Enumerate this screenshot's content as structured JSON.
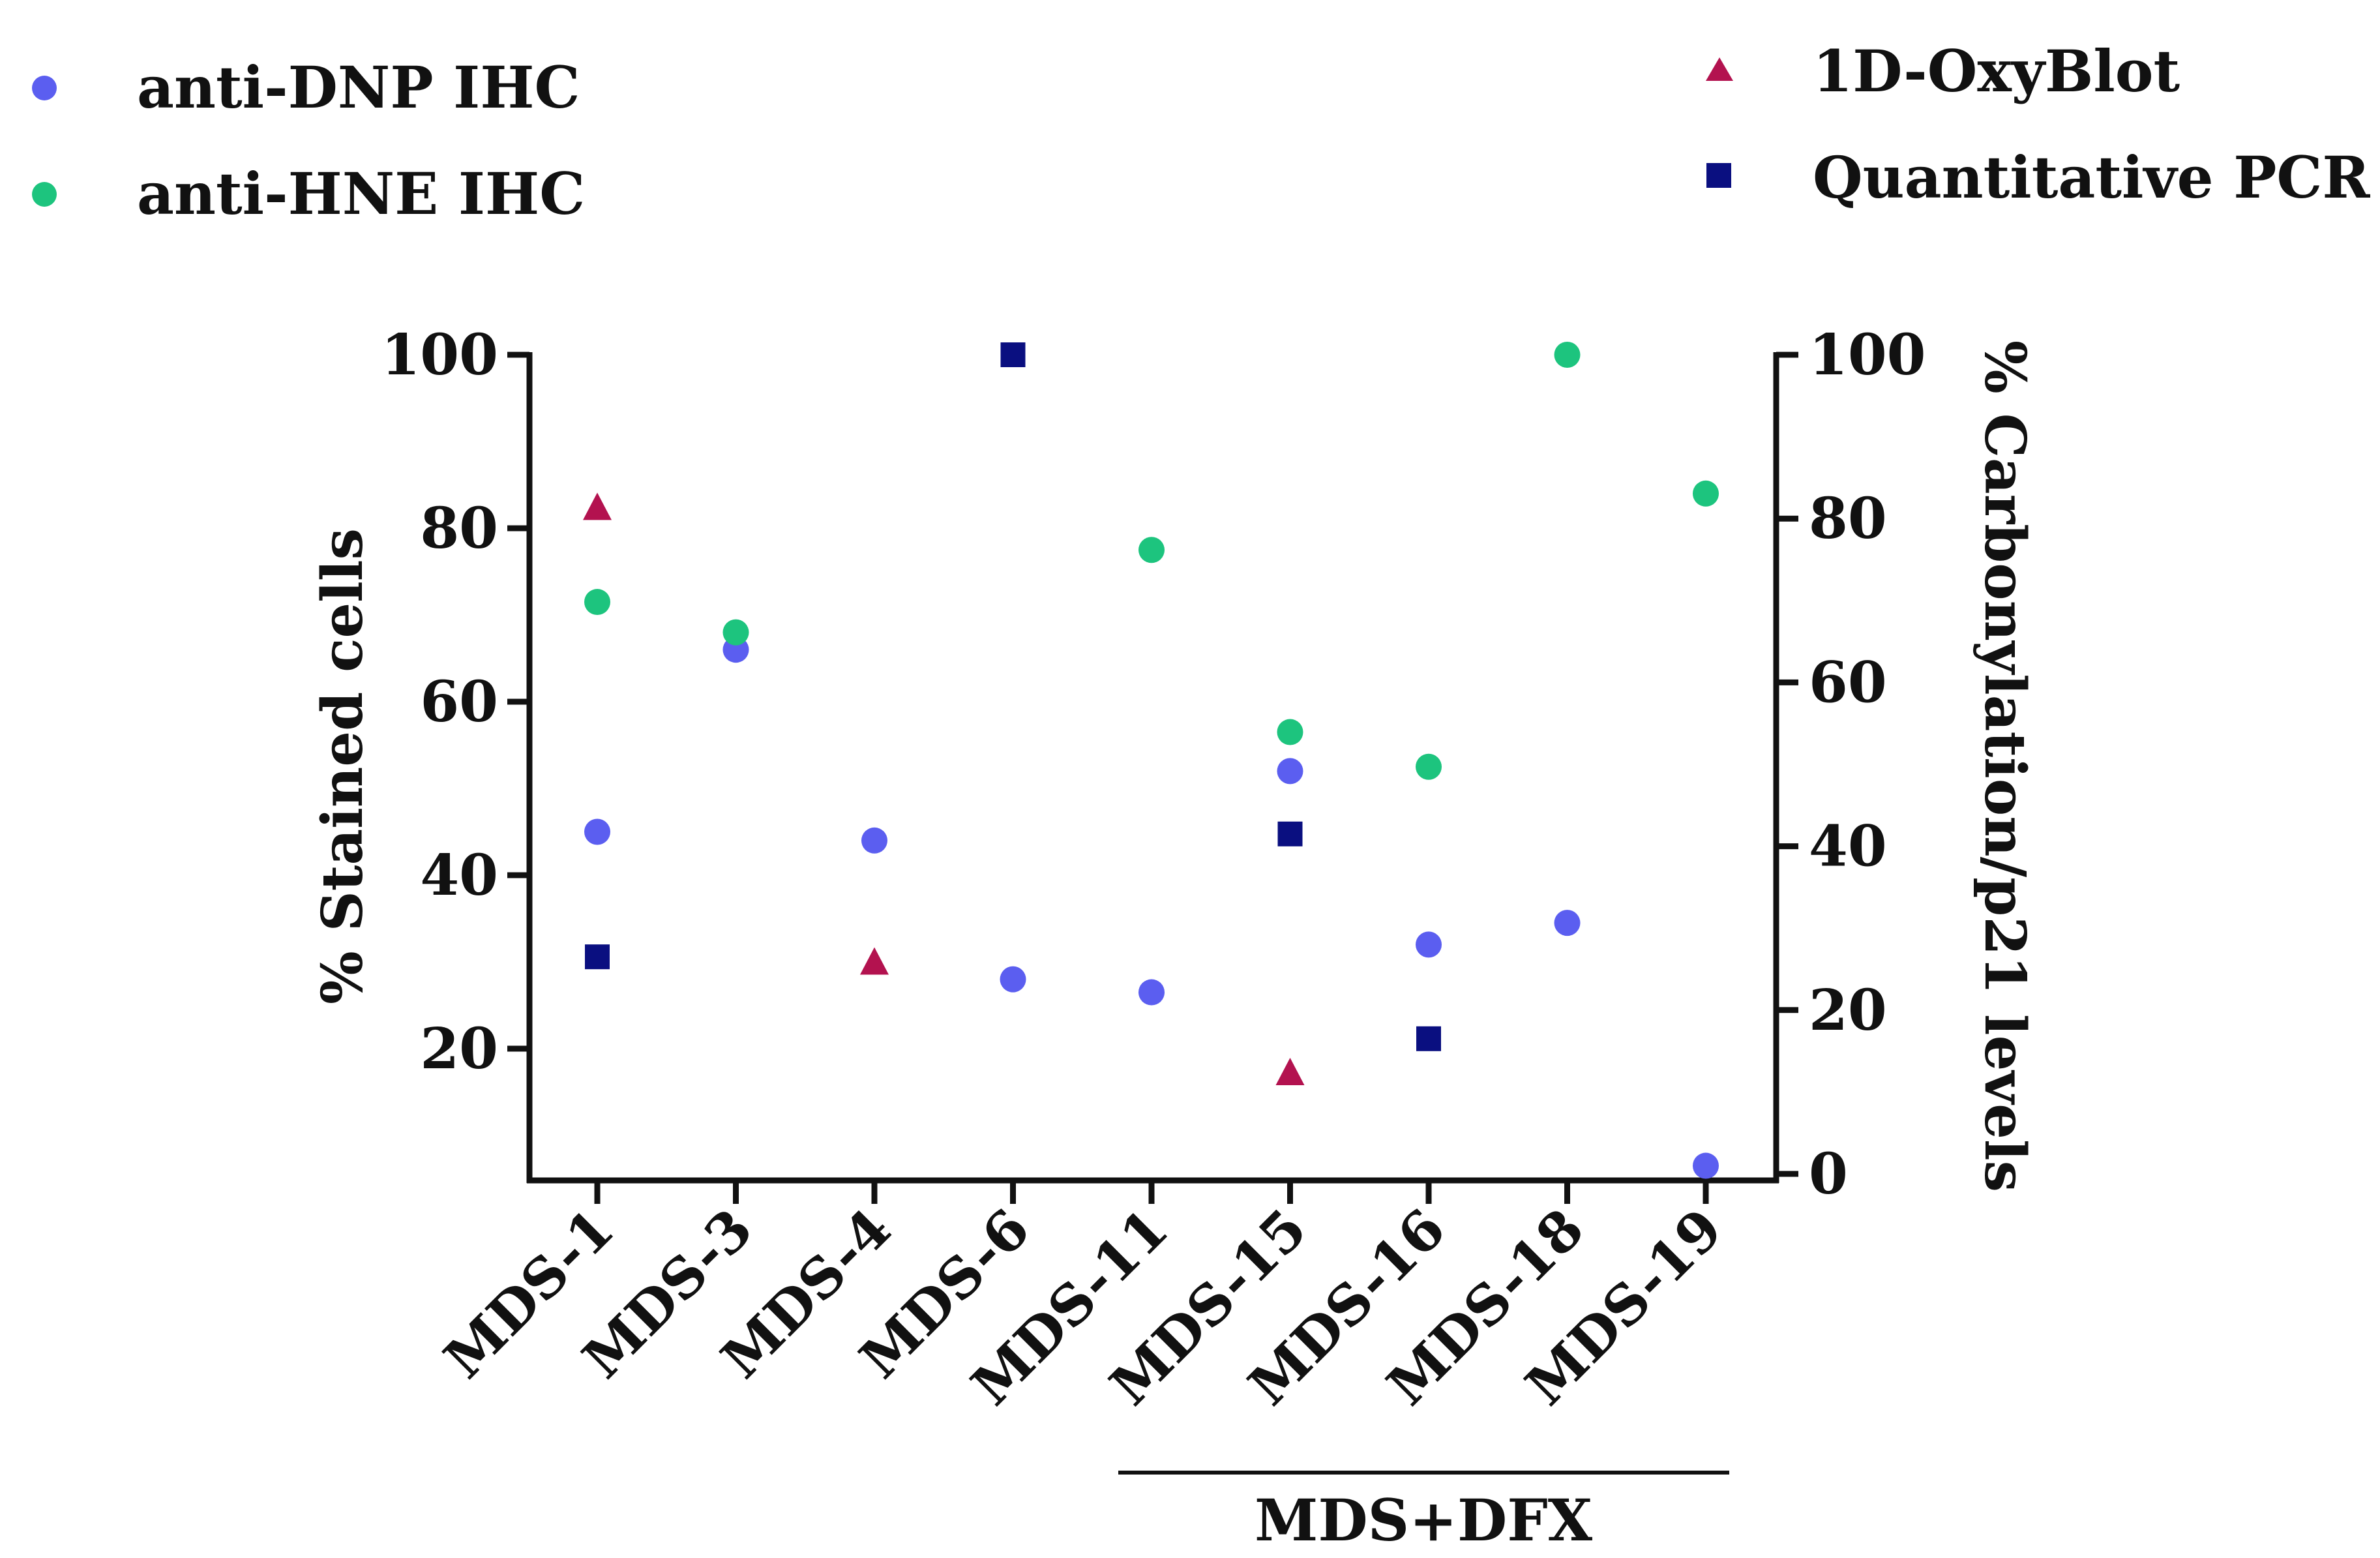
{
  "chart_data": {
    "type": "scatter",
    "categories": [
      "MDS-1",
      "MDS-3",
      "MDS-4",
      "MDS-6",
      "MDS-11",
      "MDS-15",
      "MDS-16",
      "MDS-18",
      "MDS-19"
    ],
    "group_label": "MDS+DFX",
    "group_categories": [
      "MDS-11",
      "MDS-15",
      "MDS-16",
      "MDS-18",
      "MDS-19"
    ],
    "y_left": {
      "label": "% Stained cells",
      "ticks": [
        "20",
        "40",
        "60",
        "80",
        "100"
      ],
      "range": [
        5,
        100
      ]
    },
    "y_right": {
      "label": "% Carbonylation/p21 levels",
      "ticks": [
        "0",
        "20",
        "40",
        "60",
        "80",
        "100"
      ],
      "range": [
        0,
        100
      ]
    },
    "series": [
      {
        "name": "anti-DNP IHC",
        "axis": "left",
        "marker": "circle",
        "color": "#5b5ef0",
        "values": [
          45,
          66,
          44,
          28,
          26.5,
          52,
          32,
          34.5,
          6.5
        ]
      },
      {
        "name": "anti-HNE IHC",
        "axis": "left",
        "marker": "circle",
        "color": "#1dc47e",
        "values": [
          71.5,
          68,
          null,
          null,
          77.5,
          56.5,
          52.5,
          100,
          84
        ]
      },
      {
        "name": "1D-OxyBlot",
        "axis": "right",
        "marker": "triangle",
        "color": "#b3124f",
        "values": [
          81.5,
          null,
          26,
          null,
          null,
          12.5,
          null,
          null,
          null
        ]
      },
      {
        "name": "Quantitative PCR",
        "axis": "right",
        "marker": "square",
        "color": "#0a0f80",
        "values": [
          26.5,
          null,
          null,
          100,
          null,
          41.5,
          16.5,
          null,
          null
        ]
      }
    ],
    "legend": [
      "anti-DNP IHC",
      "anti-HNE IHC",
      "1D-OxyBlot",
      "Quantitative PCR"
    ]
  }
}
